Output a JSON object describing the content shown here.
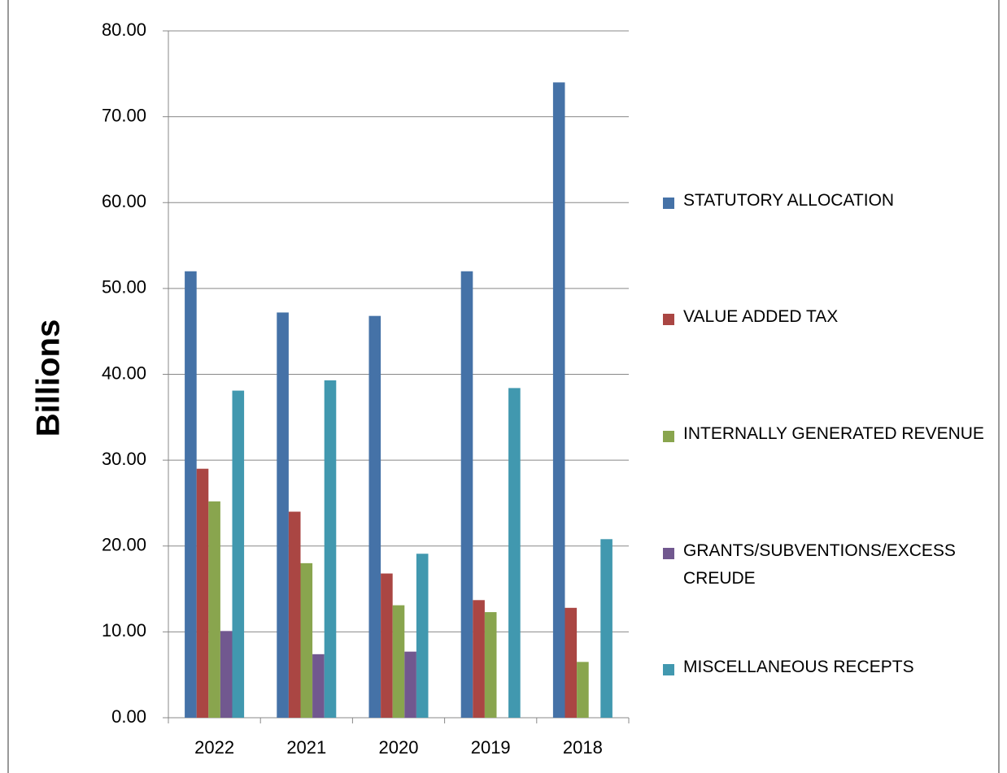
{
  "chart_data": {
    "type": "bar",
    "y_axis_label": "Billions",
    "categories": [
      "2022",
      "2021",
      "2020",
      "2019",
      "2018"
    ],
    "series": [
      {
        "name": "STATUTORY ALLOCATION",
        "color": "#4572a7",
        "values": [
          52.0,
          47.2,
          46.8,
          52.0,
          74.0
        ]
      },
      {
        "name": "VALUE ADDED TAX",
        "color": "#aa4643",
        "values": [
          29.0,
          24.0,
          16.8,
          13.7,
          12.8
        ]
      },
      {
        "name": "INTERNALLY GENERATED REVENUE",
        "color": "#89a54e",
        "values": [
          25.2,
          18.0,
          13.1,
          12.3,
          6.5
        ]
      },
      {
        "name": "GRANTS/SUBVENTIONS/EXCESS CREUDE",
        "color": "#71588f",
        "values": [
          10.1,
          7.4,
          7.7,
          null,
          null
        ]
      },
      {
        "name": "MISCELLANEOUS RECEPTS",
        "color": "#4198af",
        "values": [
          38.1,
          39.3,
          19.1,
          38.4,
          20.8
        ]
      }
    ],
    "ylim": [
      0,
      80
    ],
    "yticks": [
      {
        "value": 0,
        "label": "0.00"
      },
      {
        "value": 10,
        "label": "10.00"
      },
      {
        "value": 20,
        "label": "20.00"
      },
      {
        "value": 30,
        "label": "30.00"
      },
      {
        "value": 40,
        "label": "40.00"
      },
      {
        "value": 50,
        "label": "50.00"
      },
      {
        "value": 60,
        "label": "60.00"
      },
      {
        "value": 70,
        "label": "70.00"
      },
      {
        "value": 80,
        "label": "80.00"
      }
    ],
    "grid": true,
    "legend": "right"
  }
}
